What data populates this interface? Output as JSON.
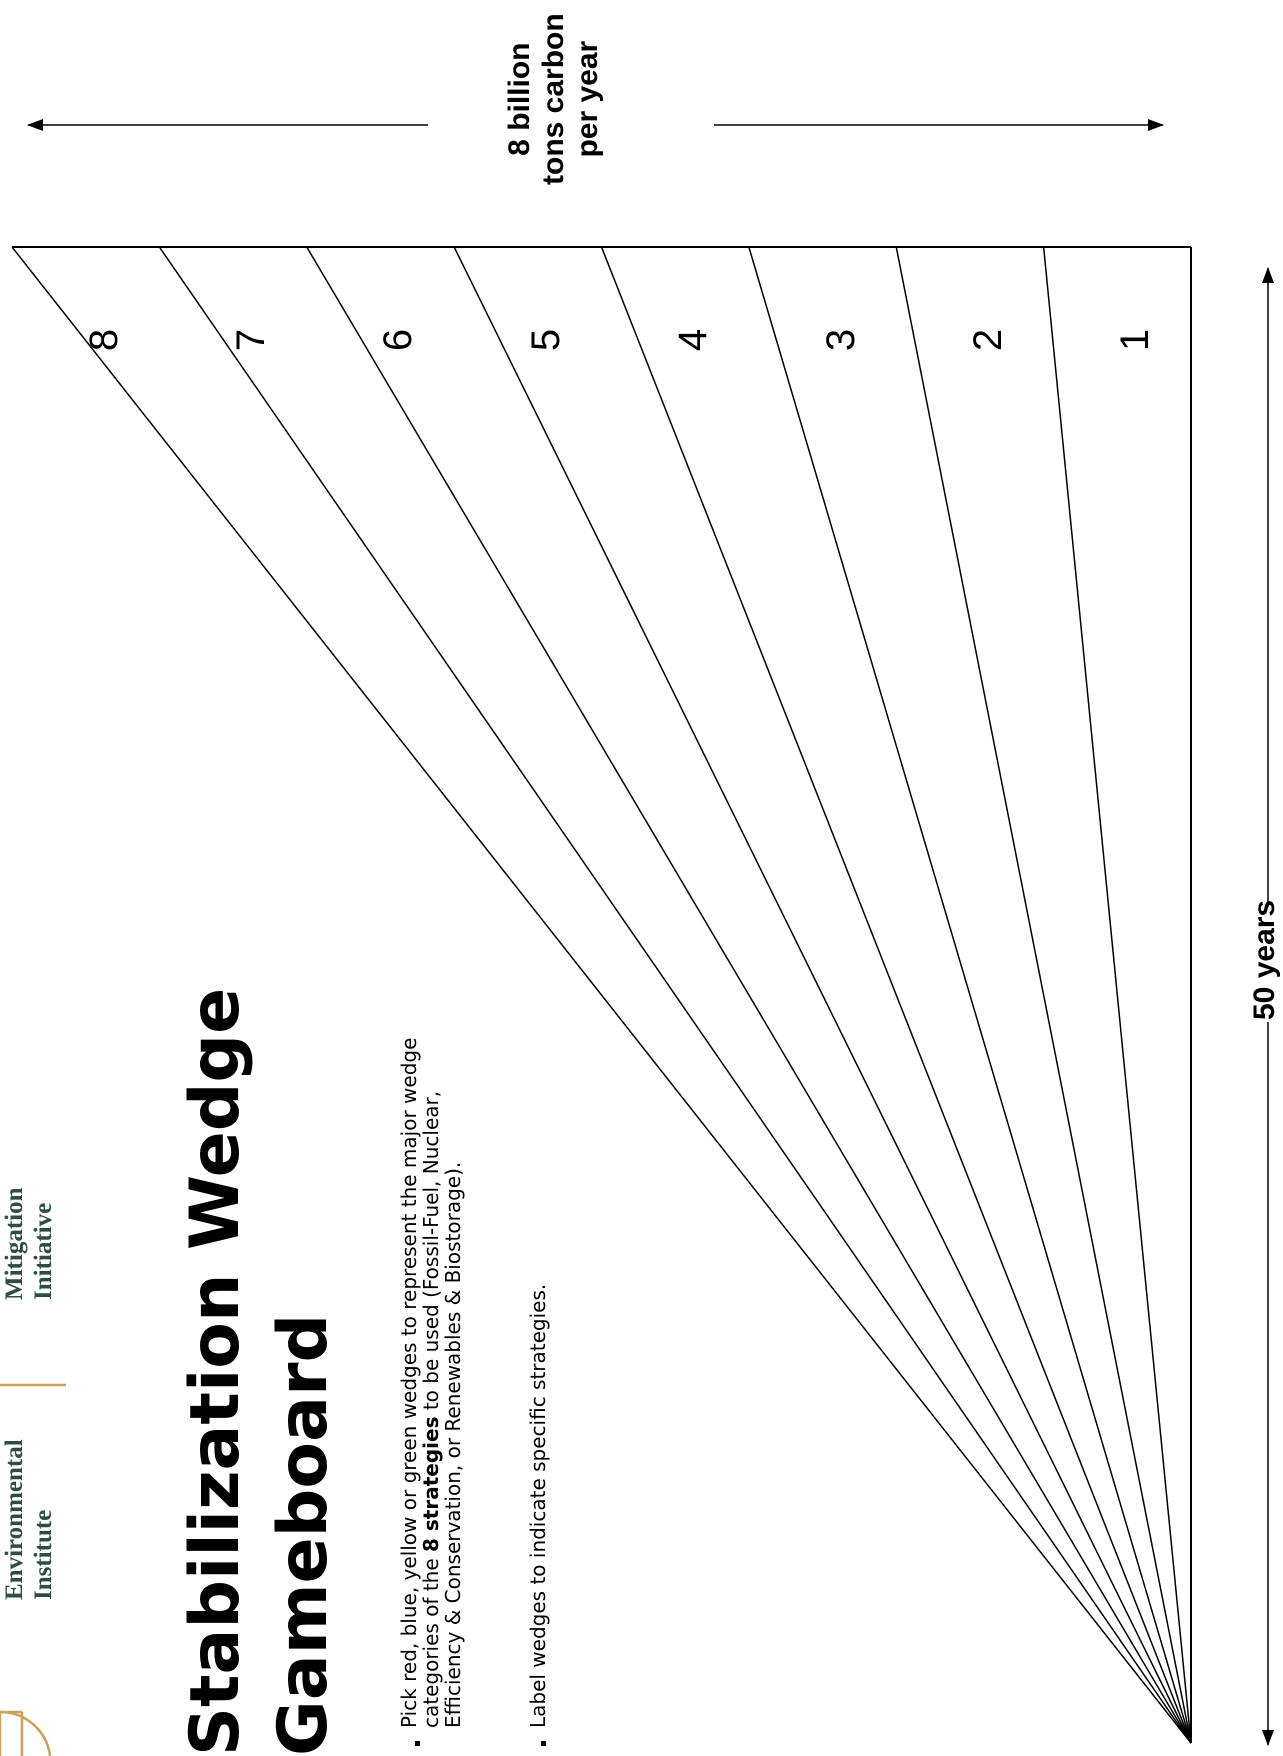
{
  "logos": {
    "left": {
      "line1": "Environmental",
      "line2": "Institute"
    },
    "right": {
      "line1": "Mitigation",
      "line2": "Initiative"
    }
  },
  "title": {
    "line1": "Stabilization Wedge",
    "line2": "Gameboard"
  },
  "instructions": {
    "item1": {
      "line1": "Pick red, blue, yellow or green wedges to represent the major wedge",
      "line2_before": "categories of the ",
      "line2_bold": "8 strategies",
      "line2_after": " to be used  (Fossil-Fuel, Nuclear,",
      "line3": "Efficiency & Conservation, or Renewables & Biostorage)."
    },
    "item2": "Label wedges to indicate specific strategies."
  },
  "emissions_axis": {
    "line1": "8 billion",
    "line2": "tons carbon",
    "line3": "per year"
  },
  "time_axis": {
    "label": "50 years"
  },
  "wedges": [
    {
      "label": "1"
    },
    {
      "label": "2"
    },
    {
      "label": "3"
    },
    {
      "label": "4"
    },
    {
      "label": "5"
    },
    {
      "label": "6"
    },
    {
      "label": "7"
    },
    {
      "label": "8"
    }
  ],
  "colors": {
    "logo_gold": "#c9a15a",
    "logo_text": "#2e4d3f",
    "lines": "#000000"
  }
}
